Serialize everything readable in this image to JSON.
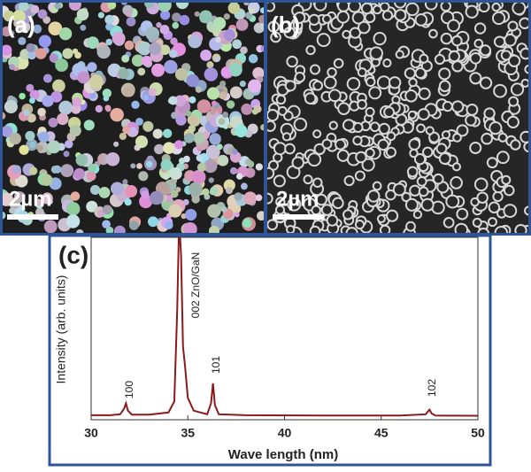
{
  "panels": [
    {
      "label": "(a)",
      "scale_bar": "2µm"
    },
    {
      "label": "(b)",
      "scale_bar": "2µm"
    }
  ],
  "chart_data": {
    "type": "line",
    "panel_label": "(c)",
    "x_label": "Wave length (nm)",
    "y_label": "Intensity (arb. units)",
    "xlim": [
      30,
      50
    ],
    "xticks": [
      30,
      35,
      40,
      45,
      50
    ],
    "ylim": [
      0,
      100
    ],
    "x": [
      30,
      31,
      31.5,
      31.7,
      31.8,
      31.9,
      32.1,
      33,
      34,
      34.3,
      34.45,
      34.55,
      34.65,
      34.75,
      34.85,
      35.0,
      35.3,
      36,
      36.2,
      36.3,
      36.4,
      36.6,
      38,
      42,
      46,
      47.3,
      47.45,
      47.5,
      47.6,
      47.8,
      50
    ],
    "series": [
      {
        "color": "#8b1a1a",
        "values": [
          2.5,
          2.5,
          3,
          6,
          9,
          5,
          2.8,
          2.8,
          4,
          10,
          60,
          110,
          90,
          40,
          30,
          12,
          5,
          3,
          9,
          20,
          8,
          3,
          2.5,
          2.3,
          2.3,
          3,
          5,
          5.5,
          3.5,
          2.3,
          2.2
        ]
      }
    ],
    "annotations": [
      "100",
      "002 ZnO/GaN",
      "101",
      "102"
    ]
  }
}
